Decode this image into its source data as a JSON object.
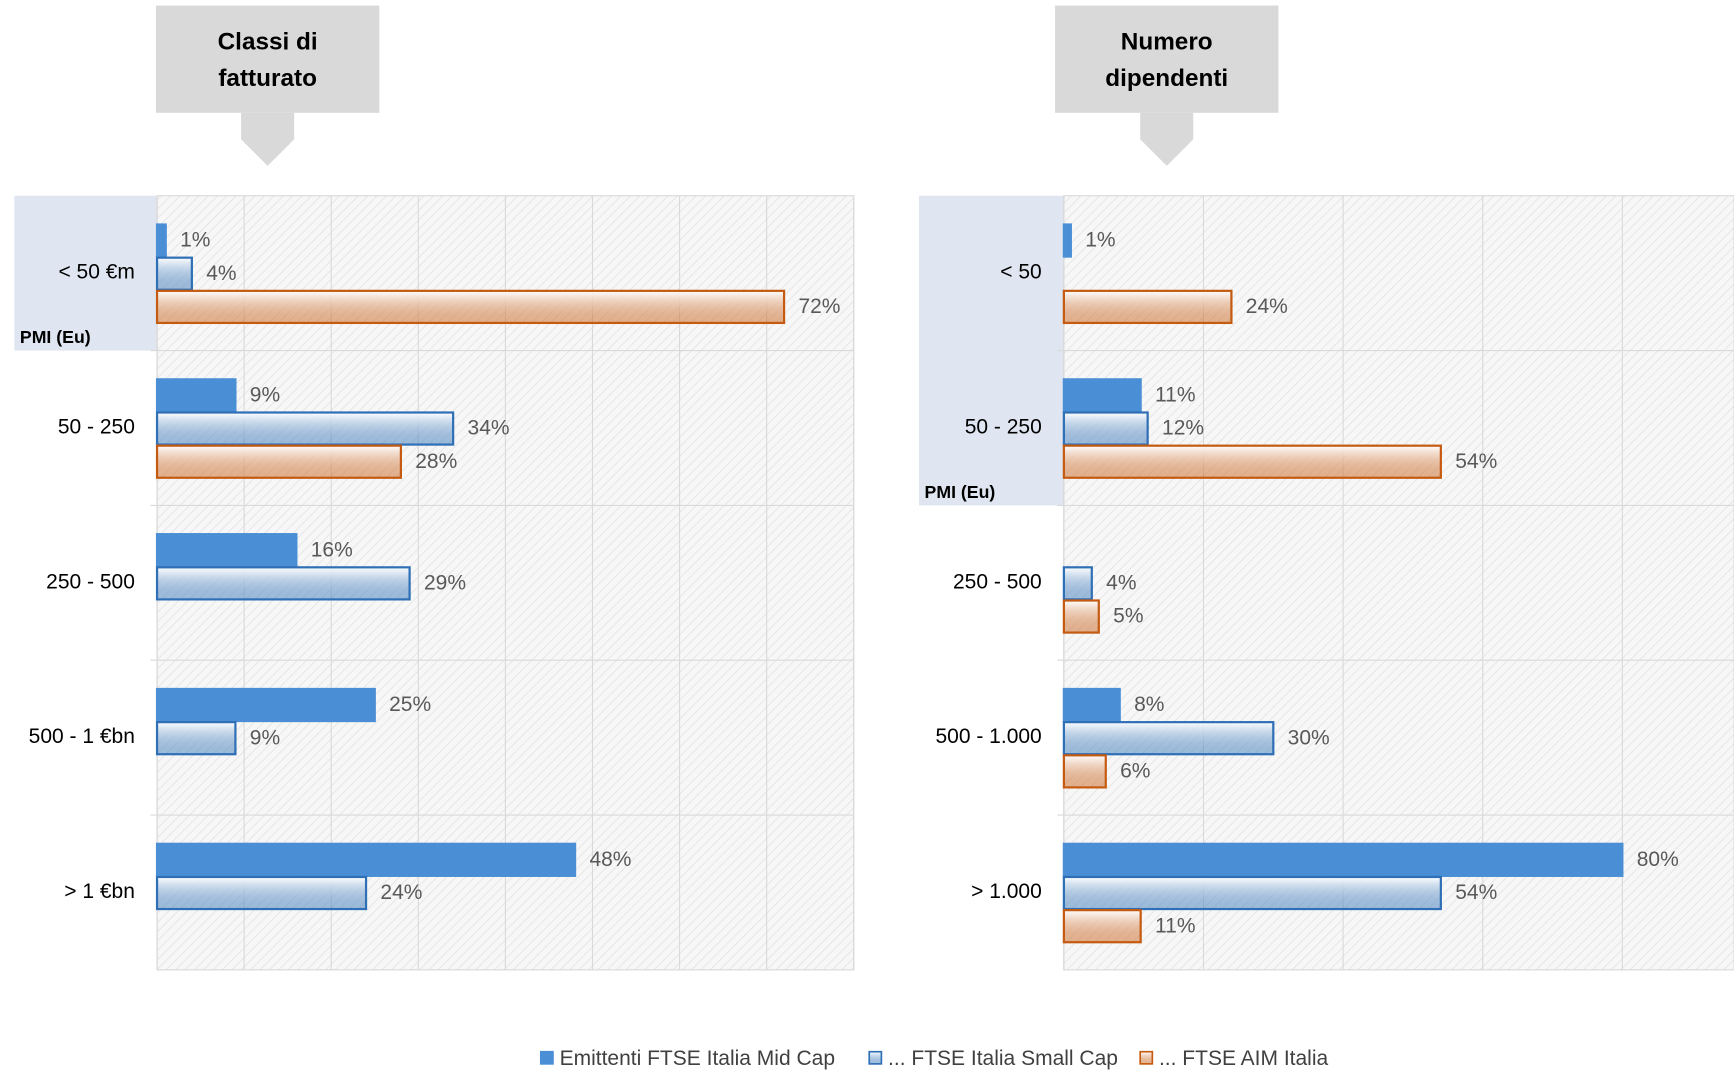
{
  "chart_data": [
    {
      "type": "bar",
      "orientation": "horizontal",
      "title": [
        "Classi di",
        "fatturato"
      ],
      "categories": [
        "< 50 €m",
        "50 - 250",
        "250 - 500",
        "500 - 1 €bn",
        "> 1 €bn"
      ],
      "series": [
        {
          "name": "Emittenti FTSE Italia Mid Cap",
          "color": "#4a8fd6",
          "fill": "solid",
          "values": [
            1,
            9,
            16,
            25,
            48
          ],
          "value_labels": [
            "1%",
            "9%",
            "16%",
            "25%",
            "48%"
          ]
        },
        {
          "name": "... FTSE Italia Small Cap",
          "color": "#2e6fb5",
          "fill": "gradient",
          "values": [
            4,
            34,
            29,
            9,
            24
          ],
          "value_labels": [
            "4%",
            "34%",
            "29%",
            "9%",
            "24%"
          ]
        },
        {
          "name": "... FTSE AIM Italia",
          "color": "#c55a11",
          "fill": "gradient",
          "values": [
            72,
            28,
            null,
            null,
            null
          ],
          "value_labels": [
            "72%",
            "28%",
            null,
            null,
            null
          ]
        }
      ],
      "xlim": [
        0,
        80
      ],
      "xticks": [
        0,
        10,
        20,
        30,
        40,
        50,
        60,
        70,
        80
      ],
      "grid": true,
      "highlight": {
        "label": "PMI (Eu)",
        "last_category": 0
      }
    },
    {
      "type": "bar",
      "orientation": "horizontal",
      "title": [
        "Numero",
        "dipendenti"
      ],
      "categories": [
        "< 50",
        "50 - 250",
        "250 - 500",
        "500 - 1.000",
        "> 1.000"
      ],
      "series": [
        {
          "color": "#4a8fd6",
          "fill": "solid",
          "values": [
            1,
            11,
            null,
            8,
            80
          ],
          "value_labels": [
            "1%",
            "11%",
            null,
            "8%",
            "80%"
          ]
        },
        {
          "color": "#2e6fb5",
          "fill": "gradient",
          "values": [
            null,
            12,
            4,
            30,
            54
          ],
          "value_labels": [
            null,
            "12%",
            "4%",
            "30%",
            "54%"
          ]
        },
        {
          "color": "#c55a11",
          "fill": "gradient",
          "values": [
            24,
            54,
            5,
            6,
            11
          ],
          "value_labels": [
            "24%",
            "54%",
            "5%",
            "6%",
            "11%"
          ]
        }
      ],
      "xlim": [
        0,
        96
      ],
      "xticks": [
        0,
        20,
        40,
        60,
        80
      ],
      "grid": true,
      "highlight": {
        "label": "PMI (Eu)",
        "last_category": 1
      }
    }
  ]
}
